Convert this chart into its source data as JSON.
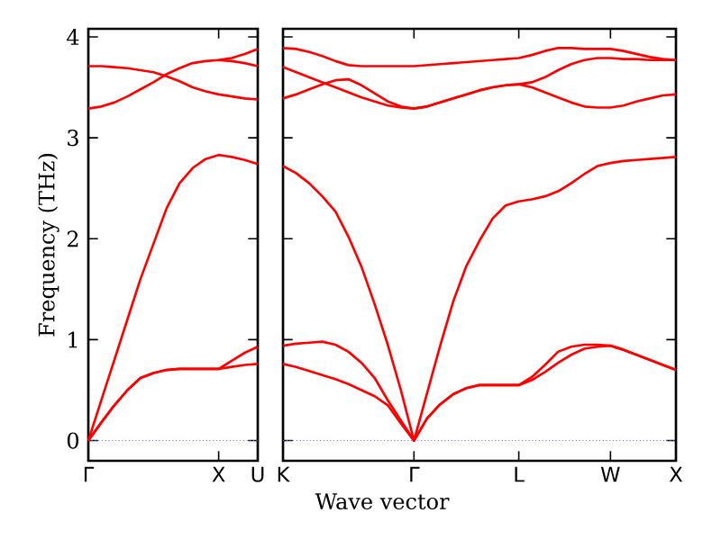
{
  "chart_data": [
    {
      "type": "line",
      "ylabel": "Frequency (THz)",
      "ylim": [
        -0.2,
        4.08
      ],
      "marker": "none",
      "categories": [
        "Γ",
        null,
        null,
        null,
        null,
        null,
        null,
        null,
        null,
        null,
        "X",
        null,
        null,
        "U"
      ],
      "yticks": [
        0,
        1,
        2,
        3,
        4
      ],
      "ref_lines": [
        {
          "axis": "y",
          "value": 0,
          "color": "#6b6bff",
          "line_style": "dotted"
        }
      ],
      "series": [
        {
          "color": "#ff0000",
          "values": [
            0,
            0.18,
            0.35,
            0.5,
            0.62,
            0.67,
            0.7,
            0.71,
            0.71,
            0.71,
            0.71,
            0.73,
            0.75,
            0.76
          ]
        },
        {
          "color": "#ff0000",
          "values": [
            0,
            0.18,
            0.35,
            0.5,
            0.62,
            0.67,
            0.7,
            0.71,
            0.71,
            0.71,
            0.71,
            0.79,
            0.87,
            0.93
          ]
        },
        {
          "color": "#ff0000",
          "values": [
            0,
            0.4,
            0.8,
            1.2,
            1.6,
            1.95,
            2.3,
            2.55,
            2.7,
            2.79,
            2.83,
            2.81,
            2.78,
            2.74
          ]
        },
        {
          "color": "#ff0000",
          "values": [
            3.71,
            3.71,
            3.7,
            3.69,
            3.67,
            3.65,
            3.61,
            3.56,
            3.5,
            3.46,
            3.43,
            3.41,
            3.39,
            3.38
          ]
        },
        {
          "color": "#ff0000",
          "values": [
            3.29,
            3.31,
            3.35,
            3.41,
            3.48,
            3.55,
            3.63,
            3.69,
            3.74,
            3.76,
            3.77,
            3.76,
            3.74,
            3.71
          ]
        },
        {
          "color": "#ff0000",
          "values": [
            null,
            null,
            null,
            null,
            null,
            null,
            null,
            null,
            null,
            null,
            3.77,
            3.79,
            3.83,
            3.88
          ]
        }
      ]
    },
    {
      "type": "line",
      "xlabel": "Wave vector",
      "ylim": [
        -0.2,
        4.08
      ],
      "marker": "none",
      "tick_labels": "x",
      "categories": [
        "K",
        null,
        null,
        null,
        null,
        null,
        null,
        null,
        null,
        null,
        "Γ",
        null,
        null,
        null,
        null,
        null,
        null,
        null,
        "L",
        null,
        null,
        null,
        null,
        null,
        null,
        "W",
        null,
        null,
        null,
        null,
        "X"
      ],
      "yticks": [
        0,
        1,
        2,
        3,
        4
      ],
      "ref_lines": [
        {
          "axis": "y",
          "value": 0,
          "color": "#6b6bff",
          "line_style": "dotted"
        }
      ],
      "series": [
        {
          "color": "#ff0000",
          "values": [
            0.76,
            0.73,
            0.69,
            0.65,
            0.61,
            0.56,
            0.5,
            0.44,
            0.35,
            0.17,
            0,
            0.22,
            0.36,
            0.46,
            0.52,
            0.55,
            0.55,
            0.55,
            0.55,
            0.6,
            0.68,
            0.77,
            0.85,
            0.91,
            0.93,
            0.94,
            0.9,
            0.85,
            0.8,
            0.75,
            0.7
          ]
        },
        {
          "color": "#ff0000",
          "values": [
            0.94,
            0.96,
            0.97,
            0.98,
            0.95,
            0.88,
            0.77,
            0.62,
            0.4,
            0.2,
            0,
            0.22,
            0.36,
            0.46,
            0.52,
            0.55,
            0.55,
            0.55,
            0.55,
            0.63,
            0.75,
            0.88,
            0.93,
            0.95,
            0.95,
            0.94,
            0.9,
            0.85,
            0.8,
            0.75,
            0.7
          ]
        },
        {
          "color": "#ff0000",
          "values": [
            2.72,
            2.65,
            2.55,
            2.42,
            2.27,
            2.02,
            1.72,
            1.35,
            0.95,
            0.5,
            0,
            0.47,
            0.94,
            1.38,
            1.73,
            1.98,
            2.2,
            2.33,
            2.37,
            2.39,
            2.42,
            2.47,
            2.55,
            2.64,
            2.72,
            2.75,
            2.77,
            2.78,
            2.79,
            2.8,
            2.81
          ]
        },
        {
          "color": "#ff0000",
          "values": [
            3.89,
            3.88,
            3.85,
            3.81,
            3.76,
            3.72,
            3.71,
            3.71,
            3.71,
            3.71,
            3.71,
            3.72,
            3.73,
            3.74,
            3.75,
            3.76,
            3.77,
            3.78,
            3.79,
            3.82,
            3.86,
            3.89,
            3.89,
            3.88,
            3.88,
            3.88,
            3.86,
            3.83,
            3.8,
            3.78,
            3.77
          ]
        },
        {
          "color": "#ff0000",
          "values": [
            3.7,
            3.65,
            3.6,
            3.55,
            3.5,
            3.45,
            3.4,
            3.36,
            3.32,
            3.3,
            3.29,
            3.31,
            3.35,
            3.39,
            3.43,
            3.47,
            3.5,
            3.52,
            3.53,
            3.55,
            3.6,
            3.67,
            3.73,
            3.77,
            3.79,
            3.79,
            3.78,
            3.78,
            3.77,
            3.77,
            3.77
          ]
        },
        {
          "color": "#ff0000",
          "values": [
            3.39,
            3.43,
            3.48,
            3.53,
            3.57,
            3.58,
            3.52,
            3.44,
            3.36,
            3.31,
            3.29,
            3.31,
            3.35,
            3.39,
            3.43,
            3.47,
            3.5,
            3.52,
            3.53,
            3.5,
            3.45,
            3.4,
            3.35,
            3.31,
            3.3,
            3.3,
            3.32,
            3.36,
            3.39,
            3.42,
            3.43
          ]
        }
      ]
    }
  ]
}
